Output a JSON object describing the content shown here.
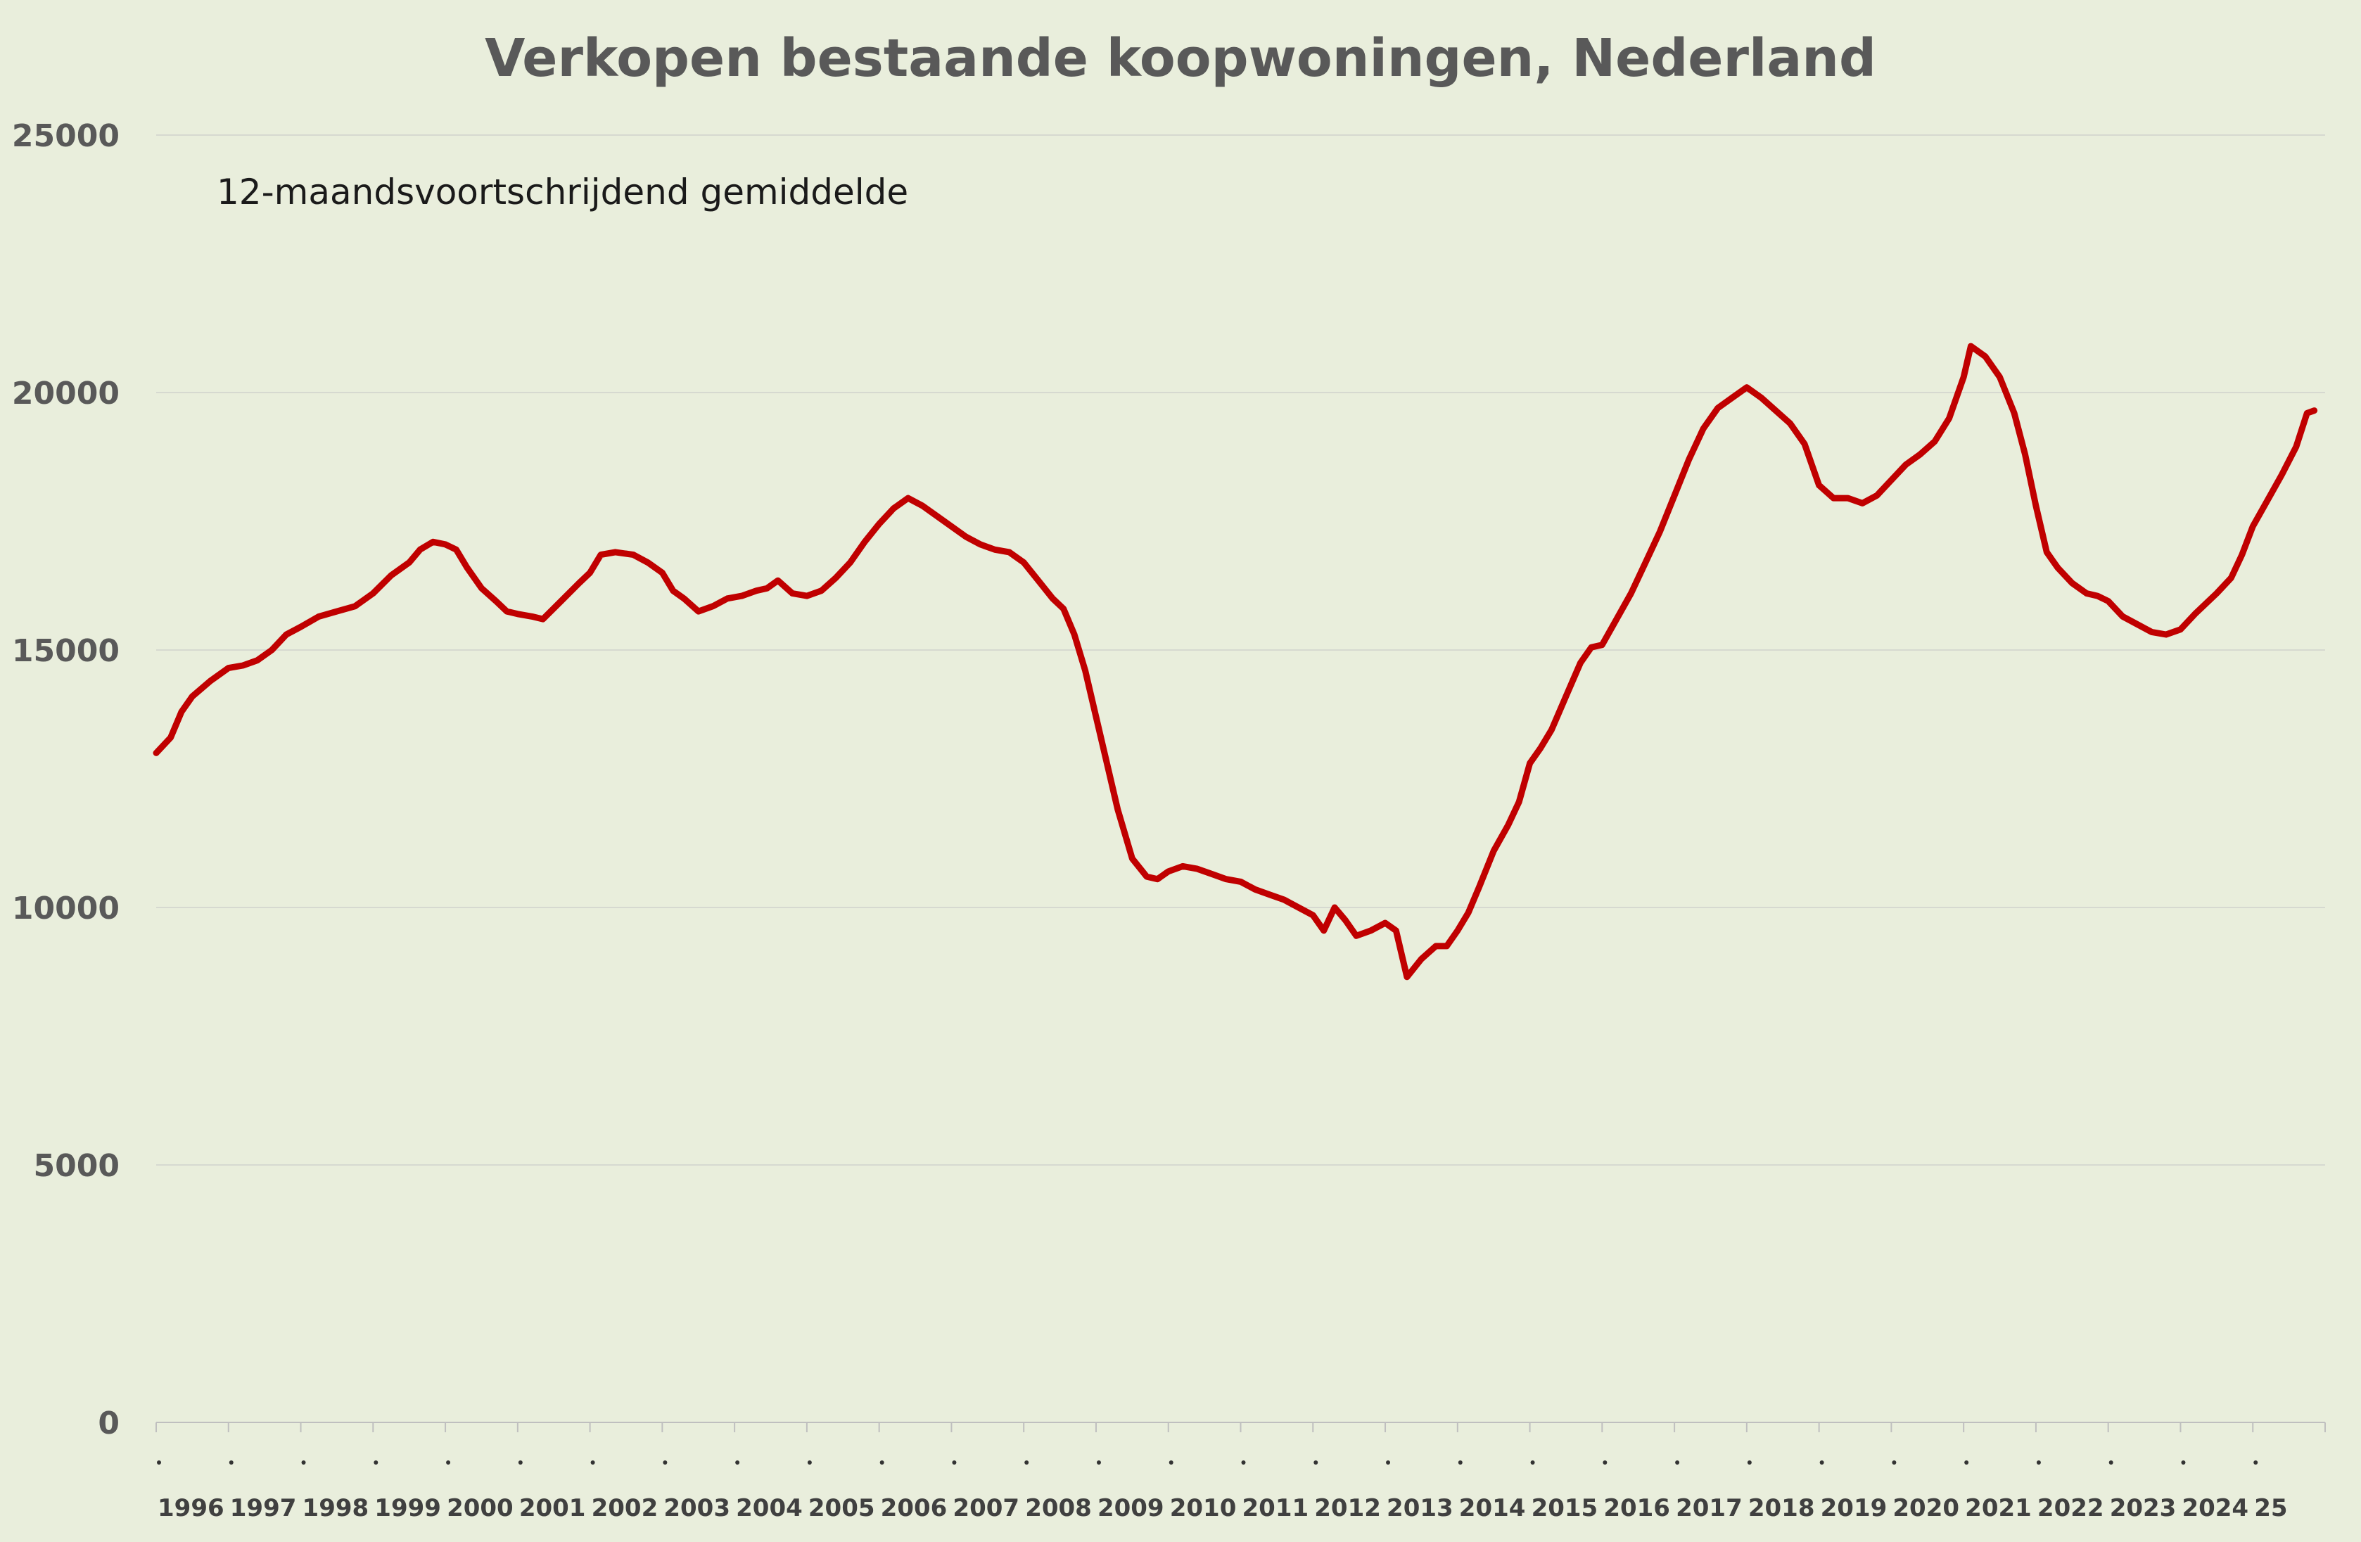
{
  "chart_data": {
    "type": "line",
    "title": "Verkopen bestaande koopwoningen, Nederland",
    "subtitle": "12-maandsvoortschrijdend gemiddelde",
    "xlabel": "",
    "ylabel": "",
    "ylim": [
      0,
      25000
    ],
    "yticks": [
      0,
      5000,
      10000,
      15000,
      20000,
      25000
    ],
    "grid": true,
    "legend": "none",
    "x_categories": [
      "1996",
      "1997",
      "1998",
      "1999",
      "2000",
      "2001",
      "2002",
      "2003",
      "2004",
      "2005",
      "2006",
      "2007",
      "2008",
      "2009",
      "2010",
      "2011",
      "2012",
      "2013",
      "2014",
      "2015",
      "2016",
      "2017",
      "2018",
      "2019",
      "2020",
      "2021",
      "2022",
      "2023",
      "2024",
      "25"
    ],
    "series": [
      {
        "color": "#c00000",
        "points": [
          [
            1996.0,
            13000
          ],
          [
            1996.2,
            13300
          ],
          [
            1996.35,
            13800
          ],
          [
            1996.5,
            14100
          ],
          [
            1996.75,
            14400
          ],
          [
            1997.0,
            14650
          ],
          [
            1997.2,
            14700
          ],
          [
            1997.4,
            14800
          ],
          [
            1997.6,
            15000
          ],
          [
            1997.8,
            15300
          ],
          [
            1998.0,
            15450
          ],
          [
            1998.25,
            15650
          ],
          [
            1998.5,
            15750
          ],
          [
            1998.75,
            15850
          ],
          [
            1999.0,
            16100
          ],
          [
            1999.25,
            16450
          ],
          [
            1999.5,
            16700
          ],
          [
            1999.65,
            16950
          ],
          [
            1999.83,
            17100
          ],
          [
            2000.0,
            17050
          ],
          [
            2000.15,
            16950
          ],
          [
            2000.3,
            16600
          ],
          [
            2000.5,
            16200
          ],
          [
            2000.7,
            15950
          ],
          [
            2000.85,
            15750
          ],
          [
            2001.0,
            15700
          ],
          [
            2001.2,
            15650
          ],
          [
            2001.35,
            15600
          ],
          [
            2001.6,
            15950
          ],
          [
            2001.85,
            16300
          ],
          [
            2002.0,
            16500
          ],
          [
            2002.15,
            16850
          ],
          [
            2002.35,
            16900
          ],
          [
            2002.6,
            16850
          ],
          [
            2002.8,
            16700
          ],
          [
            2003.0,
            16500
          ],
          [
            2003.15,
            16150
          ],
          [
            2003.3,
            16000
          ],
          [
            2003.5,
            15750
          ],
          [
            2003.7,
            15850
          ],
          [
            2003.9,
            16000
          ],
          [
            2004.1,
            16050
          ],
          [
            2004.3,
            16150
          ],
          [
            2004.45,
            16200
          ],
          [
            2004.6,
            16350
          ],
          [
            2004.8,
            16100
          ],
          [
            2005.0,
            16050
          ],
          [
            2005.2,
            16150
          ],
          [
            2005.4,
            16400
          ],
          [
            2005.6,
            16700
          ],
          [
            2005.8,
            17100
          ],
          [
            2006.0,
            17450
          ],
          [
            2006.2,
            17750
          ],
          [
            2006.4,
            17950
          ],
          [
            2006.6,
            17800
          ],
          [
            2006.8,
            17600
          ],
          [
            2007.0,
            17400
          ],
          [
            2007.2,
            17200
          ],
          [
            2007.4,
            17050
          ],
          [
            2007.6,
            16950
          ],
          [
            2007.8,
            16900
          ],
          [
            2008.0,
            16700
          ],
          [
            2008.2,
            16350
          ],
          [
            2008.4,
            16000
          ],
          [
            2008.55,
            15800
          ],
          [
            2008.7,
            15300
          ],
          [
            2008.85,
            14600
          ],
          [
            2009.0,
            13700
          ],
          [
            2009.15,
            12800
          ],
          [
            2009.3,
            11900
          ],
          [
            2009.5,
            10950
          ],
          [
            2009.7,
            10600
          ],
          [
            2009.85,
            10550
          ],
          [
            2010.0,
            10700
          ],
          [
            2010.2,
            10800
          ],
          [
            2010.4,
            10750
          ],
          [
            2010.6,
            10650
          ],
          [
            2010.8,
            10550
          ],
          [
            2011.0,
            10500
          ],
          [
            2011.2,
            10350
          ],
          [
            2011.4,
            10250
          ],
          [
            2011.6,
            10150
          ],
          [
            2011.8,
            10000
          ],
          [
            2012.0,
            9850
          ],
          [
            2012.15,
            9550
          ],
          [
            2012.3,
            10000
          ],
          [
            2012.45,
            9750
          ],
          [
            2012.6,
            9450
          ],
          [
            2012.8,
            9550
          ],
          [
            2013.0,
            9700
          ],
          [
            2013.15,
            9550
          ],
          [
            2013.3,
            8650
          ],
          [
            2013.5,
            9000
          ],
          [
            2013.7,
            9250
          ],
          [
            2013.85,
            9250
          ],
          [
            2014.0,
            9550
          ],
          [
            2014.15,
            9900
          ],
          [
            2014.3,
            10400
          ],
          [
            2014.5,
            11100
          ],
          [
            2014.7,
            11600
          ],
          [
            2014.85,
            12050
          ],
          [
            2015.0,
            12800
          ],
          [
            2015.15,
            13100
          ],
          [
            2015.3,
            13450
          ],
          [
            2015.5,
            14100
          ],
          [
            2015.7,
            14750
          ],
          [
            2015.85,
            15050
          ],
          [
            2016.0,
            15100
          ],
          [
            2016.2,
            15600
          ],
          [
            2016.4,
            16100
          ],
          [
            2016.6,
            16700
          ],
          [
            2016.8,
            17300
          ],
          [
            2017.0,
            18000
          ],
          [
            2017.2,
            18700
          ],
          [
            2017.4,
            19300
          ],
          [
            2017.6,
            19700
          ],
          [
            2017.8,
            19900
          ],
          [
            2018.0,
            20100
          ],
          [
            2018.2,
            19900
          ],
          [
            2018.4,
            19650
          ],
          [
            2018.6,
            19400
          ],
          [
            2018.8,
            19000
          ],
          [
            2019.0,
            18200
          ],
          [
            2019.2,
            17950
          ],
          [
            2019.4,
            17950
          ],
          [
            2019.6,
            17850
          ],
          [
            2019.8,
            18000
          ],
          [
            2020.0,
            18300
          ],
          [
            2020.2,
            18600
          ],
          [
            2020.4,
            18800
          ],
          [
            2020.6,
            19050
          ],
          [
            2020.8,
            19500
          ],
          [
            2021.0,
            20300
          ],
          [
            2021.1,
            20900
          ],
          [
            2021.3,
            20700
          ],
          [
            2021.5,
            20300
          ],
          [
            2021.7,
            19600
          ],
          [
            2021.85,
            18800
          ],
          [
            2022.0,
            17800
          ],
          [
            2022.15,
            16900
          ],
          [
            2022.3,
            16600
          ],
          [
            2022.5,
            16300
          ],
          [
            2022.7,
            16100
          ],
          [
            2022.85,
            16050
          ],
          [
            2023.0,
            15950
          ],
          [
            2023.2,
            15650
          ],
          [
            2023.4,
            15500
          ],
          [
            2023.6,
            15350
          ],
          [
            2023.8,
            15300
          ],
          [
            2024.0,
            15400
          ],
          [
            2024.2,
            15700
          ],
          [
            2024.35,
            15900
          ],
          [
            2024.5,
            16100
          ],
          [
            2024.7,
            16400
          ],
          [
            2024.85,
            16850
          ],
          [
            2025.0,
            17400
          ],
          [
            2025.2,
            17900
          ],
          [
            2025.4,
            18400
          ],
          [
            2025.6,
            18950
          ],
          [
            2025.75,
            19600
          ],
          [
            2025.85,
            19650
          ]
        ]
      }
    ]
  }
}
